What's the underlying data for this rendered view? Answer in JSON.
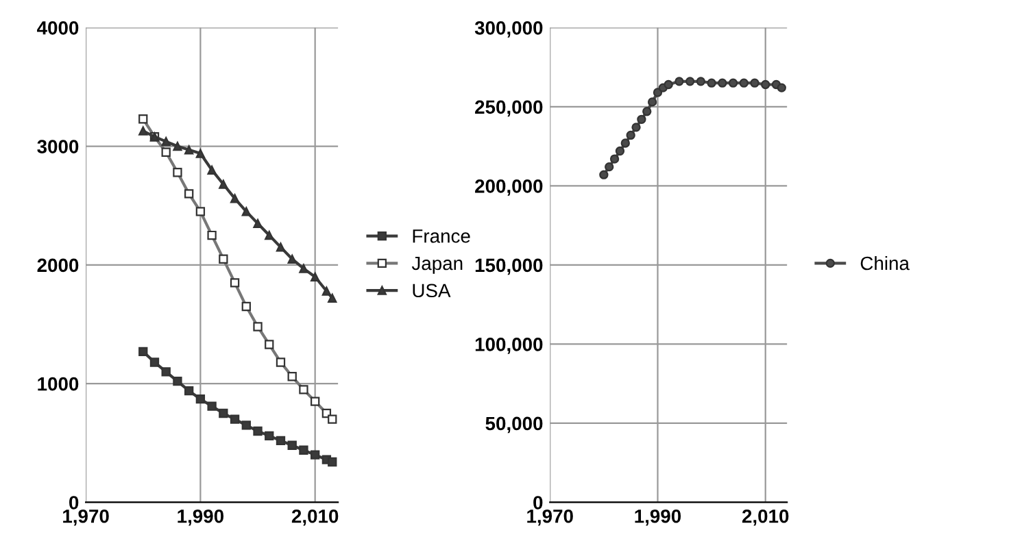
{
  "chart_data": [
    {
      "type": "line",
      "xlim": [
        1970,
        2014
      ],
      "xticks": [
        {
          "value": 1970,
          "label": "1,970"
        },
        {
          "value": 1990,
          "label": "1,990"
        },
        {
          "value": 2010,
          "label": "2,010"
        }
      ],
      "ylim": [
        0,
        4000
      ],
      "yticks": [
        0,
        1000,
        2000,
        3000,
        4000
      ],
      "grid": true,
      "legend": "right",
      "series": [
        {
          "name": "France",
          "color": "#3a3a3a",
          "marker": "square",
          "x": [
            1980,
            1982,
            1984,
            1986,
            1988,
            1990,
            1992,
            1994,
            1996,
            1998,
            2000,
            2002,
            2004,
            2006,
            2008,
            2010,
            2012,
            2013
          ],
          "values": [
            1270,
            1180,
            1100,
            1020,
            940,
            870,
            810,
            750,
            700,
            650,
            600,
            560,
            520,
            480,
            440,
            400,
            360,
            340
          ]
        },
        {
          "name": "Japan",
          "color": "#ffffff",
          "marker": "square",
          "x": [
            1980,
            1982,
            1984,
            1986,
            1988,
            1990,
            1992,
            1994,
            1996,
            1998,
            2000,
            2002,
            2004,
            2006,
            2008,
            2010,
            2012,
            2013
          ],
          "values": [
            3230,
            3080,
            2950,
            2780,
            2600,
            2450,
            2250,
            2050,
            1850,
            1650,
            1480,
            1330,
            1180,
            1060,
            950,
            850,
            750,
            700
          ]
        },
        {
          "name": "USA",
          "color": "#3a3a3a",
          "marker": "triangle",
          "x": [
            1980,
            1982,
            1984,
            1986,
            1988,
            1990,
            1992,
            1994,
            1996,
            1998,
            2000,
            2002,
            2004,
            2006,
            2008,
            2010,
            2012,
            2013
          ],
          "values": [
            3130,
            3080,
            3040,
            3000,
            2970,
            2940,
            2800,
            2680,
            2560,
            2450,
            2350,
            2250,
            2150,
            2050,
            1970,
            1900,
            1780,
            1720
          ]
        }
      ]
    },
    {
      "type": "line",
      "xlim": [
        1970,
        2014
      ],
      "xticks": [
        {
          "value": 1970,
          "label": "1,970"
        },
        {
          "value": 1990,
          "label": "1,990"
        },
        {
          "value": 2010,
          "label": "2,010"
        }
      ],
      "ylim": [
        0,
        300000
      ],
      "yticks": [
        {
          "value": 0,
          "label": "0"
        },
        {
          "value": 50000,
          "label": "50,000"
        },
        {
          "value": 100000,
          "label": "100,000"
        },
        {
          "value": 150000,
          "label": "150,000"
        },
        {
          "value": 200000,
          "label": "200,000"
        },
        {
          "value": 250000,
          "label": "250,000"
        },
        {
          "value": 300000,
          "label": "300,000"
        }
      ],
      "grid": true,
      "legend": "right",
      "series": [
        {
          "name": "China",
          "color": "#4a4a4a",
          "marker": "circle",
          "x": [
            1980,
            1981,
            1982,
            1983,
            1984,
            1985,
            1986,
            1987,
            1988,
            1989,
            1990,
            1991,
            1992,
            1994,
            1996,
            1998,
            2000,
            2002,
            2004,
            2006,
            2008,
            2010,
            2012,
            2013
          ],
          "values": [
            207000,
            212000,
            217000,
            222000,
            227000,
            232000,
            237000,
            242000,
            247000,
            253000,
            259000,
            262000,
            264000,
            266000,
            266000,
            266000,
            265000,
            265000,
            265000,
            265000,
            265000,
            264000,
            264000,
            262000
          ]
        }
      ]
    }
  ]
}
